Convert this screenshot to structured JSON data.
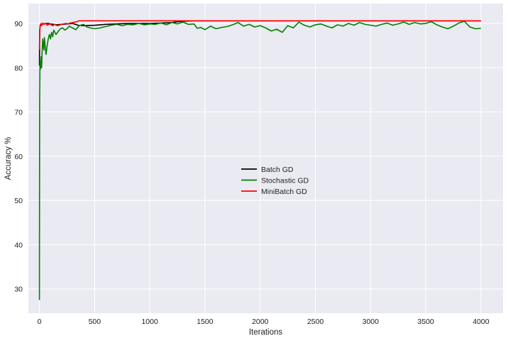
{
  "chart_data": {
    "type": "line",
    "title": "",
    "xlabel": "Iterations",
    "ylabel": "Accuracy %",
    "xlim": [
      -100,
      4200
    ],
    "ylim": [
      24.5,
      94.5
    ],
    "xticks": [
      0,
      500,
      1000,
      1500,
      2000,
      2500,
      3000,
      3500,
      4000
    ],
    "yticks": [
      30,
      40,
      50,
      60,
      70,
      80,
      90
    ],
    "grid": true,
    "background": "#eaeaf2",
    "legend_position": "center",
    "series": [
      {
        "name": "Batch GD",
        "color": "#000000",
        "x": [
          0,
          3,
          6,
          10,
          20,
          40,
          60,
          80,
          100,
          150,
          200,
          250,
          300,
          350,
          400,
          500,
          600,
          700,
          800,
          1000,
          1100,
          1200,
          1250,
          1300,
          1400,
          1500,
          2000,
          2500,
          3000,
          3500,
          4000
        ],
        "y": [
          80.5,
          88.5,
          89.3,
          89.6,
          89.8,
          89.9,
          90.0,
          90.0,
          89.9,
          89.7,
          89.8,
          89.9,
          90.0,
          89.6,
          89.5,
          89.6,
          89.8,
          89.9,
          90.0,
          90.0,
          90.1,
          90.2,
          90.4,
          90.5,
          90.6,
          90.6,
          90.6,
          90.6,
          90.6,
          90.6,
          90.6
        ]
      },
      {
        "name": "Stochastic GD",
        "color": "#008000",
        "x": [
          0,
          2,
          5,
          8,
          12,
          16,
          20,
          25,
          30,
          35,
          40,
          45,
          50,
          55,
          60,
          70,
          80,
          90,
          100,
          110,
          120,
          130,
          140,
          150,
          170,
          190,
          210,
          230,
          250,
          270,
          300,
          330,
          360,
          400,
          430,
          460,
          500,
          550,
          600,
          650,
          700,
          750,
          800,
          850,
          900,
          950,
          1000,
          1050,
          1100,
          1150,
          1200,
          1250,
          1300,
          1350,
          1400,
          1430,
          1460,
          1500,
          1550,
          1600,
          1650,
          1700,
          1750,
          1800,
          1850,
          1900,
          1950,
          2000,
          2050,
          2100,
          2150,
          2200,
          2250,
          2300,
          2350,
          2400,
          2450,
          2500,
          2550,
          2600,
          2650,
          2700,
          2750,
          2800,
          2850,
          2900,
          2950,
          3000,
          3050,
          3100,
          3150,
          3200,
          3250,
          3300,
          3350,
          3400,
          3450,
          3500,
          3550,
          3600,
          3650,
          3700,
          3750,
          3800,
          3850,
          3900,
          3950,
          4000
        ],
        "y": [
          27.5,
          72.0,
          81.5,
          79.6,
          80.5,
          82.5,
          80.0,
          84.0,
          86.5,
          85.0,
          84.0,
          86.8,
          85.5,
          84.0,
          83.0,
          85.0,
          86.5,
          87.5,
          86.5,
          88.0,
          87.0,
          88.5,
          88.0,
          87.5,
          88.2,
          88.8,
          89.0,
          88.5,
          88.8,
          89.4,
          89.0,
          88.6,
          89.5,
          89.8,
          89.2,
          89.0,
          88.8,
          89.0,
          89.3,
          89.6,
          89.8,
          89.5,
          89.8,
          89.7,
          90.0,
          89.7,
          89.9,
          89.8,
          90.1,
          89.7,
          90.2,
          89.9,
          90.3,
          89.8,
          89.9,
          88.9,
          89.1,
          88.6,
          89.4,
          88.8,
          89.1,
          89.3,
          89.7,
          90.2,
          89.4,
          89.8,
          89.2,
          89.5,
          89.0,
          88.3,
          88.7,
          88.0,
          89.5,
          89.0,
          90.3,
          89.6,
          89.2,
          89.7,
          89.9,
          89.4,
          89.0,
          89.7,
          89.4,
          90.0,
          89.6,
          90.2,
          89.8,
          89.6,
          89.4,
          89.8,
          90.1,
          89.6,
          89.9,
          90.3,
          89.8,
          90.2,
          89.9,
          90.0,
          90.4,
          89.7,
          89.2,
          88.8,
          89.4,
          90.1,
          90.5,
          89.2,
          88.8,
          88.9
        ]
      },
      {
        "name": "MiniBatch GD",
        "color": "#ff0000",
        "x": [
          0,
          3,
          6,
          10,
          15,
          20,
          30,
          40,
          50,
          60,
          70,
          80,
          90,
          100,
          120,
          140,
          160,
          180,
          200,
          220,
          240,
          260,
          280,
          300,
          320,
          340,
          360,
          400,
          500,
          1000,
          1500,
          2000,
          2500,
          3000,
          3500,
          4000
        ],
        "y": [
          84.0,
          88.0,
          89.6,
          89.8,
          90.0,
          89.5,
          90.1,
          89.8,
          89.9,
          90.0,
          89.6,
          89.7,
          89.9,
          89.8,
          89.5,
          89.8,
          89.5,
          89.6,
          89.8,
          89.9,
          90.0,
          89.9,
          90.1,
          90.2,
          90.3,
          90.4,
          90.6,
          90.6,
          90.6,
          90.6,
          90.6,
          90.6,
          90.6,
          90.6,
          90.6,
          90.6
        ]
      }
    ]
  }
}
